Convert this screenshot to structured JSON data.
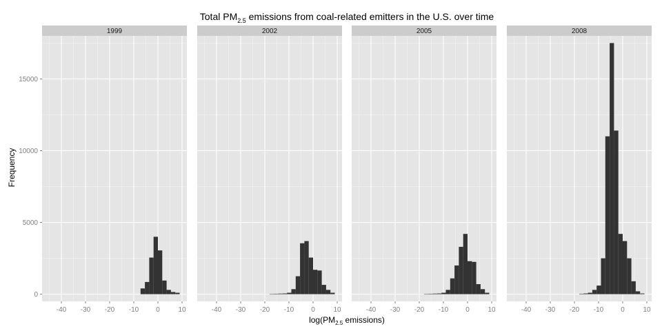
{
  "chart_data": {
    "type": "bar",
    "title": "Total PM₂.₅ emissions from coal-related emitters in the U.S. over time",
    "title_parts": {
      "before": "Total PM",
      "sub": "2.5",
      "after": " emissions from coal-related emitters in the U.S. over time"
    },
    "xlabel": "log(PM₂.₅ emissions)",
    "xlabel_parts": {
      "before": "log(PM",
      "sub": "2.5",
      "after": " emissions)"
    },
    "ylabel": "Frequency",
    "xlim": [
      -48,
      12
    ],
    "ylim": [
      -500,
      18000
    ],
    "x_ticks": [
      -40,
      -30,
      -20,
      -10,
      0,
      10
    ],
    "y_ticks": [
      0,
      5000,
      10000,
      15000
    ],
    "grid": true,
    "panel_background": "#e5e5e5",
    "strip_background": "#cccccc",
    "bar_color": "#333333",
    "bin_width": 1.8,
    "panels": [
      {
        "label": "1999",
        "x": [
          -6.3,
          -4.5,
          -2.7,
          -0.9,
          0.9,
          2.7,
          4.5,
          6.3,
          8.1
        ],
        "values": [
          400,
          850,
          2550,
          4000,
          3050,
          950,
          300,
          150,
          100
        ]
      },
      {
        "label": "2002",
        "x": [
          -17.1,
          -15.3,
          -13.5,
          -11.7,
          -9.9,
          -8.1,
          -6.3,
          -4.5,
          -2.7,
          -0.9,
          0.9,
          2.7,
          4.5,
          6.3,
          8.1
        ],
        "values": [
          20,
          30,
          40,
          50,
          100,
          350,
          1250,
          3550,
          3700,
          2550,
          1700,
          1650,
          650,
          300,
          100
        ]
      },
      {
        "label": "2005",
        "x": [
          -17.1,
          -15.3,
          -13.5,
          -11.7,
          -9.9,
          -8.1,
          -6.3,
          -4.5,
          -2.7,
          -0.9,
          0.9,
          2.7,
          4.5,
          6.3,
          8.1
        ],
        "values": [
          20,
          30,
          40,
          50,
          100,
          300,
          1100,
          2000,
          3300,
          4200,
          2300,
          2250,
          700,
          350,
          100
        ]
      },
      {
        "label": "2008",
        "x": [
          -17.1,
          -15.3,
          -13.5,
          -11.7,
          -9.9,
          -8.1,
          -6.3,
          -4.5,
          -2.7,
          -0.9,
          0.9,
          2.7,
          4.5,
          6.3,
          8.1
        ],
        "values": [
          30,
          50,
          100,
          300,
          600,
          2500,
          11000,
          17500,
          11400,
          4200,
          3700,
          2500,
          900,
          200,
          50
        ]
      }
    ]
  }
}
